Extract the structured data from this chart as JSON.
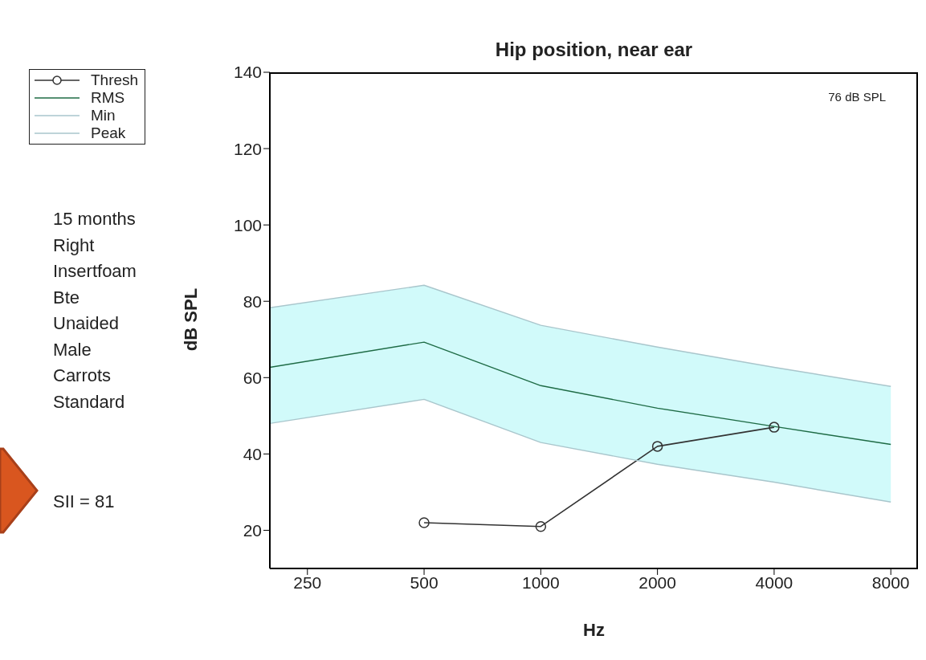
{
  "chart_data": {
    "type": "line",
    "title": "Hip position, near ear",
    "xlabel": "Hz",
    "ylabel": "dB SPL",
    "log": "x",
    "xlim": [
      200,
      9400
    ],
    "xticks": [
      250,
      500,
      1000,
      2000,
      4000,
      8000
    ],
    "ylim": [
      10,
      140
    ],
    "yticks": [
      20,
      40,
      60,
      80,
      100,
      120,
      140
    ],
    "grid": false,
    "legend": "top left",
    "series": [
      {
        "name": "Thresh",
        "color": "#333333",
        "marker": "circle",
        "x": [
          500,
          1000,
          2000,
          4000
        ],
        "values": [
          22,
          21,
          42,
          47
        ]
      },
      {
        "name": "RMS",
        "color": "#1e6b45",
        "marker": "none",
        "x": [
          200,
          500,
          1000,
          2000,
          4000,
          8000
        ],
        "values": [
          62.7,
          69.3,
          57.9,
          52,
          47.2,
          42.5
        ],
        "lower": [
          48,
          54.3,
          43,
          37.3,
          32.6,
          27.4
        ],
        "upper": [
          78.3,
          84.2,
          73.7,
          68,
          62.7,
          57.7
        ]
      },
      {
        "name": "Min",
        "color": "#a9c6cc",
        "marker": "none",
        "x": [
          200,
          500,
          1000,
          2000,
          4000,
          8000
        ],
        "values": [
          48,
          54.3,
          43,
          37.3,
          32.6,
          27.4
        ]
      },
      {
        "name": "Peak",
        "color": "#a9c6cc",
        "marker": "none",
        "x": [
          200,
          500,
          1000,
          2000,
          4000,
          8000
        ],
        "values": [
          78.3,
          84.2,
          73.7,
          68,
          62.7,
          57.7
        ]
      }
    ],
    "annotations": [
      "76 dB SPL",
      "15 months",
      "Right",
      "Insertfoam",
      "Bte",
      "Unaided",
      "Male",
      "Carrots",
      "Standard",
      "SII = 81"
    ]
  }
}
